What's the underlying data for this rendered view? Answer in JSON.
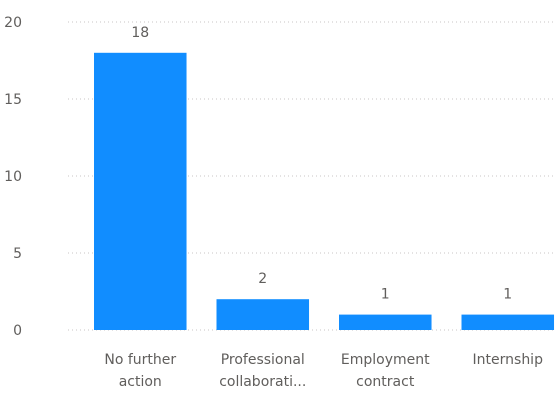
{
  "chart_data": {
    "type": "bar",
    "title": "",
    "xlabel": "",
    "ylabel": "",
    "categories": [
      [
        "No further",
        "action"
      ],
      [
        "Professional",
        "collaborati..."
      ],
      [
        "Employment",
        "contract"
      ],
      [
        "Internship"
      ]
    ],
    "values": [
      18,
      2,
      1,
      1
    ],
    "data_labels": [
      "18",
      "2",
      "1",
      "1"
    ],
    "ylim": [
      0,
      20
    ],
    "yticks": [
      0,
      5,
      10,
      15,
      20
    ],
    "grid": "horizontal dotted",
    "legend": "none",
    "colors": {
      "bar": "#118DFF",
      "text": "#605E5C",
      "grid": "#C8C6C4"
    }
  }
}
